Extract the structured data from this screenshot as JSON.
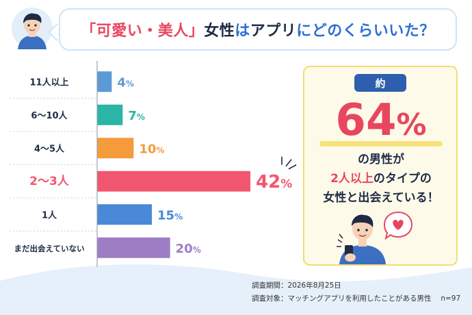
{
  "title": {
    "part1": "「可愛い・美人」",
    "part2": "女性",
    "part3": "は",
    "part4": "アプリ",
    "part5": "に",
    "part6": "どのくらいいた？"
  },
  "chart_data": {
    "type": "bar",
    "orientation": "horizontal",
    "categories": [
      "11人以上",
      "6〜10人",
      "4〜5人",
      "2〜3人",
      "1人",
      "まだ出会えていない"
    ],
    "values": [
      4,
      7,
      10,
      42,
      15,
      20
    ],
    "unit": "%",
    "colors": [
      "#5b9bd5",
      "#2bb5a6",
      "#f59b3c",
      "#f2566f",
      "#4a89d6",
      "#9d7dc4"
    ],
    "highlight_index": 3,
    "xlim": [
      0,
      42
    ]
  },
  "callout": {
    "badge": "約",
    "big_number": "64",
    "big_unit": "%",
    "line1": "の男性が",
    "line2_highlight": "2人以上",
    "line2_rest": "のタイプの",
    "line3": "女性と出会えている！"
  },
  "notes": {
    "period": "調査期間：2026年8月25日",
    "target": "調査対象：マッチングアプリを利用したことがある男性　 n=97"
  },
  "colors": {
    "accent_pink": "#e8465f",
    "accent_blue": "#2d6fd0",
    "navy": "#2d5fae",
    "callout_bg": "#fefaea",
    "callout_border": "#f2dc6f"
  },
  "icons": [
    "man-avatar-icon",
    "man-with-phone-icon",
    "heart-bubble-icon"
  ]
}
